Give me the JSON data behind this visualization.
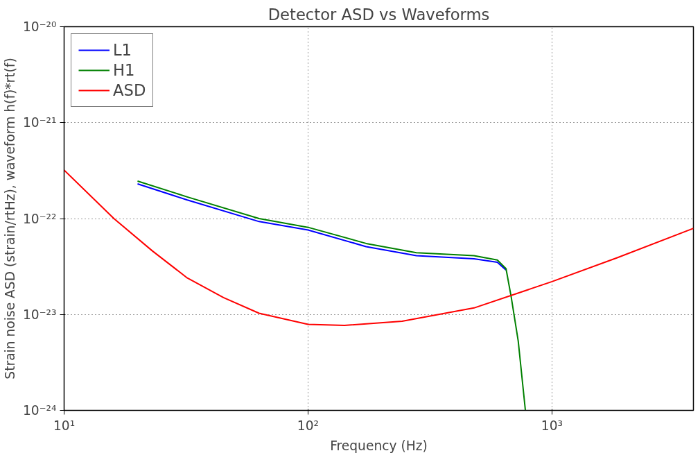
{
  "chart_data": {
    "type": "line",
    "title": "Detector ASD vs Waveforms",
    "xlabel": "Frequency (Hz)",
    "ylabel": "Strain noise ASD (strain/rtHz), waveform h(f)*rt(f)",
    "log": "xy",
    "grid": true,
    "legend": "top left",
    "marker": "none",
    "line_style": "solid",
    "xlim": [
      10,
      3800
    ],
    "ylim": [
      1e-24,
      1e-20
    ],
    "xticks": [
      {
        "value": 10,
        "label": "10¹"
      },
      {
        "value": 100,
        "label": "10²"
      },
      {
        "value": 1000,
        "label": "10³"
      }
    ],
    "yticks": [
      {
        "value": 1e-24,
        "label": "10⁻²⁴"
      },
      {
        "value": 1e-23,
        "label": "10⁻²³"
      },
      {
        "value": 1e-22,
        "label": "10⁻²²"
      },
      {
        "value": 1e-21,
        "label": "10⁻²¹"
      },
      {
        "value": 1e-20,
        "label": "10⁻²⁰"
      }
    ],
    "series": [
      {
        "name": "L1",
        "color": "#0000ff",
        "x": [
          20,
          32,
          63,
          100,
          173,
          278,
          479,
          597,
          648
        ],
        "values": [
          2.3e-22,
          1.56e-22,
          9.3e-23,
          7.6e-23,
          5.1e-23,
          4.1e-23,
          3.8e-23,
          3.5e-23,
          2.9e-23
        ]
      },
      {
        "name": "H1",
        "color": "#008000",
        "x": [
          20,
          32,
          63,
          100,
          173,
          278,
          479,
          597,
          648,
          680,
          727,
          778
        ],
        "values": [
          2.46e-22,
          1.68e-22,
          1e-22,
          8.1e-23,
          5.5e-23,
          4.4e-23,
          4.1e-23,
          3.7e-23,
          3e-23,
          1.54e-23,
          5.3e-24,
          1e-24
        ]
      },
      {
        "name": "ASD",
        "color": "#ff0000",
        "x": [
          10,
          16,
          23,
          32,
          45,
          63,
          100,
          141,
          243,
          479,
          1000,
          1850,
          3800
        ],
        "values": [
          3.2e-22,
          1e-22,
          4.6e-23,
          2.4e-23,
          1.5e-23,
          1.03e-23,
          7.9e-24,
          7.7e-24,
          8.5e-24,
          1.17e-23,
          2.2e-23,
          3.9e-23,
          7.9e-23
        ]
      }
    ]
  }
}
